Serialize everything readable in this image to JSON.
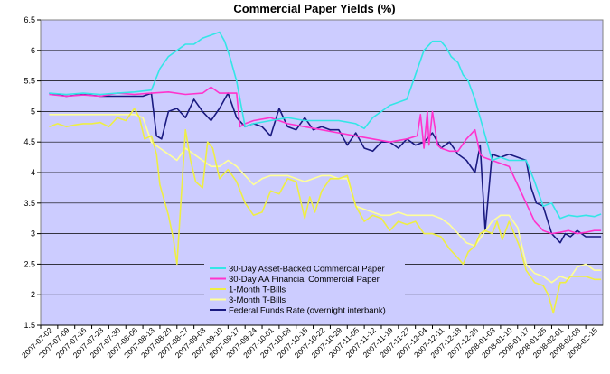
{
  "chart_data": {
    "type": "line",
    "title": "Commercial Paper Yields (%)",
    "xlabel": "",
    "ylabel": "",
    "ylim": [
      1.5,
      6.5
    ],
    "yticks": [
      "1.5",
      "2",
      "2.5",
      "3",
      "3.5",
      "4",
      "4.5",
      "5",
      "5.5",
      "6",
      "6.5"
    ],
    "x_tick_labels": [
      "2007-07-02",
      "2007-07-09",
      "2007-07-16",
      "2007-07-23",
      "2007-07-30",
      "2007-08-06",
      "2007-08-13",
      "2007-08-20",
      "2007-08-27",
      "2007-09-03",
      "2007-09-10",
      "2007-09-17",
      "2007-09-24",
      "2007-10-01",
      "2007-10-08",
      "2007-10-15",
      "2007-10-22",
      "2007-10-29",
      "2007-11-05",
      "2007-11-12",
      "2007-11-19",
      "2007-11-27",
      "2007-12-04",
      "2007-12-11",
      "2007-12-18",
      "2007-12-26",
      "2008-01-03",
      "2008-01-10",
      "2008-01-17",
      "2008-01-25",
      "2008-02-01",
      "2008-02-08",
      "2008-02-15"
    ],
    "grid": true,
    "legend_position": "bottom-center",
    "background_color": "#ccccff",
    "series": [
      {
        "name": "30-Day Asset-Backed Commercial Paper",
        "color": "#33e6e6",
        "x": [
          0,
          1,
          2,
          3,
          4,
          5,
          6,
          6.5,
          7,
          7.5,
          8,
          8.5,
          9,
          9.5,
          10,
          10.3,
          10.6,
          11,
          11.5,
          12,
          13,
          14,
          15,
          16,
          17,
          18,
          18.5,
          19,
          20,
          21,
          21.5,
          22,
          22.5,
          23,
          23.3,
          23.6,
          24,
          24.3,
          24.6,
          25,
          25.5,
          26,
          26.5,
          27,
          27.5,
          28,
          28.5,
          29,
          29.5,
          30,
          30.5,
          31,
          31.5,
          32,
          32.4
        ],
        "y": [
          5.3,
          5.28,
          5.3,
          5.28,
          5.3,
          5.32,
          5.35,
          5.7,
          5.9,
          6.0,
          6.1,
          6.1,
          6.2,
          6.25,
          6.3,
          6.15,
          5.9,
          5.5,
          4.75,
          4.8,
          4.85,
          4.9,
          4.85,
          4.85,
          4.85,
          4.8,
          4.72,
          4.9,
          5.1,
          5.2,
          5.6,
          6.0,
          6.15,
          6.15,
          6.05,
          5.9,
          5.8,
          5.6,
          5.5,
          5.2,
          4.7,
          4.2,
          4.25,
          4.2,
          4.2,
          4.2,
          3.85,
          3.45,
          3.5,
          3.25,
          3.3,
          3.28,
          3.3,
          3.28,
          3.32
        ]
      },
      {
        "name": "30-Day AA Financial Commercial Paper",
        "color": "#ff33cc",
        "x": [
          0,
          1,
          2,
          3,
          4,
          5,
          6,
          7,
          8,
          9,
          9.5,
          10,
          10.5,
          11,
          11.2,
          11.5,
          12,
          13,
          14,
          15,
          16,
          17,
          18,
          19,
          20,
          21,
          21.6,
          21.8,
          22,
          22.2,
          22.3,
          22.5,
          22.8,
          23,
          23.5,
          24,
          24.5,
          25,
          25.3,
          25.5,
          26,
          26.5,
          27,
          27.5,
          28,
          28.5,
          29,
          29.5,
          30,
          30.5,
          31,
          31.5,
          32,
          32.4
        ],
        "y": [
          5.28,
          5.25,
          5.27,
          5.25,
          5.3,
          5.28,
          5.3,
          5.32,
          5.28,
          5.3,
          5.4,
          5.3,
          5.3,
          5.3,
          4.75,
          4.8,
          4.85,
          4.9,
          4.8,
          4.75,
          4.7,
          4.65,
          4.6,
          4.55,
          4.5,
          4.55,
          4.6,
          4.95,
          4.4,
          5.0,
          4.45,
          5.0,
          4.45,
          4.4,
          4.35,
          4.35,
          4.55,
          4.7,
          4.3,
          4.25,
          4.2,
          4.15,
          4.1,
          3.8,
          3.5,
          3.2,
          3.05,
          3.0,
          3.02,
          3.05,
          3.0,
          3.02,
          3.05,
          3.05
        ]
      },
      {
        "name": "1-Month T-Bills",
        "color": "#eeee44",
        "x": [
          0,
          0.5,
          1,
          1.5,
          2,
          2.5,
          3,
          3.5,
          4,
          4.5,
          5,
          5.3,
          5.6,
          6,
          6.3,
          6.5,
          6.8,
          7,
          7.3,
          7.5,
          7.8,
          8,
          8.3,
          8.6,
          9,
          9.3,
          9.6,
          10,
          10.5,
          11,
          11.5,
          12,
          12.5,
          13,
          13.5,
          14,
          14.5,
          15,
          15.3,
          15.6,
          16,
          16.5,
          17,
          17.5,
          18,
          18.5,
          19,
          19.5,
          20,
          20.5,
          21,
          21.5,
          22,
          22.5,
          23,
          23.5,
          24,
          24.3,
          24.6,
          25,
          25.3,
          25.6,
          26,
          26.3,
          26.6,
          27,
          27.3,
          27.6,
          28,
          28.5,
          29,
          29.3,
          29.6,
          30,
          30.3,
          30.6,
          31,
          31.5,
          32,
          32.4
        ],
        "y": [
          4.75,
          4.8,
          4.75,
          4.78,
          4.8,
          4.8,
          4.82,
          4.75,
          4.9,
          4.85,
          5.05,
          4.9,
          4.55,
          4.6,
          4.3,
          3.8,
          3.5,
          3.3,
          2.9,
          2.5,
          3.8,
          4.7,
          4.2,
          3.85,
          3.75,
          4.5,
          4.4,
          3.9,
          4.05,
          3.85,
          3.5,
          3.3,
          3.35,
          3.7,
          3.65,
          3.9,
          3.85,
          3.25,
          3.6,
          3.35,
          3.7,
          3.9,
          3.9,
          3.95,
          3.45,
          3.2,
          3.3,
          3.25,
          3.05,
          3.2,
          3.15,
          3.2,
          3.0,
          3.0,
          2.95,
          2.75,
          2.6,
          2.5,
          2.7,
          2.8,
          3.0,
          3.05,
          3.0,
          3.2,
          2.9,
          3.2,
          3.0,
          2.8,
          2.4,
          2.2,
          2.15,
          2.0,
          1.7,
          2.2,
          2.2,
          2.3,
          2.3,
          2.3,
          2.25,
          2.25
        ]
      },
      {
        "name": "3-Month T-Bills",
        "color": "#ffff99",
        "x": [
          0,
          1,
          2,
          3,
          4,
          5,
          5.5,
          6,
          6.5,
          7,
          7.5,
          8,
          8.5,
          9,
          9.5,
          10,
          10.5,
          11,
          11.5,
          12,
          12.5,
          13,
          14,
          15,
          15.5,
          16,
          16.5,
          17,
          17.5,
          18,
          18.5,
          19,
          19.5,
          20,
          20.5,
          21,
          21.5,
          22,
          22.5,
          23,
          23.5,
          24,
          24.5,
          25,
          25.5,
          26,
          26.5,
          27,
          27.5,
          28,
          28.5,
          29,
          29.5,
          30,
          30.5,
          31,
          31.5,
          32,
          32.4
        ],
        "y": [
          4.95,
          4.95,
          4.95,
          4.95,
          4.95,
          4.95,
          4.9,
          4.5,
          4.4,
          4.3,
          4.2,
          4.4,
          4.3,
          4.2,
          4.1,
          4.1,
          4.2,
          4.1,
          3.95,
          3.8,
          3.9,
          3.95,
          3.95,
          3.85,
          3.9,
          3.95,
          3.95,
          3.9,
          3.9,
          3.45,
          3.4,
          3.35,
          3.3,
          3.3,
          3.35,
          3.3,
          3.3,
          3.3,
          3.3,
          3.25,
          3.15,
          3.0,
          2.85,
          2.8,
          3.0,
          3.2,
          3.3,
          3.3,
          3.1,
          2.5,
          2.35,
          2.3,
          2.2,
          2.3,
          2.25,
          2.45,
          2.5,
          2.4,
          2.4
        ]
      },
      {
        "name": "Federal Funds Rate (overnight interbank)",
        "color": "#1a1a80",
        "x": [
          0,
          1,
          2,
          3,
          4,
          5,
          5.5,
          6,
          6.3,
          6.6,
          7,
          7.5,
          8,
          8.5,
          9,
          9.5,
          10,
          10.5,
          11,
          11.5,
          12,
          12.5,
          13,
          13.5,
          14,
          14.5,
          15,
          15.5,
          16,
          16.5,
          17,
          17.5,
          18,
          18.5,
          19,
          19.5,
          20,
          20.5,
          21,
          21.5,
          22,
          22.5,
          23,
          23.5,
          24,
          24.5,
          25,
          25.3,
          25.6,
          26,
          26.5,
          27,
          27.5,
          28,
          28.3,
          28.6,
          29,
          29.5,
          30,
          30.3,
          30.6,
          31,
          31.5,
          32,
          32.4
        ],
        "y": [
          5.3,
          5.25,
          5.28,
          5.25,
          5.25,
          5.25,
          5.25,
          5.3,
          4.6,
          4.55,
          5.0,
          5.05,
          4.9,
          5.2,
          5.0,
          4.85,
          5.05,
          5.3,
          4.9,
          4.75,
          4.8,
          4.75,
          4.6,
          5.05,
          4.75,
          4.7,
          4.9,
          4.7,
          4.75,
          4.7,
          4.7,
          4.45,
          4.65,
          4.4,
          4.35,
          4.5,
          4.5,
          4.4,
          4.55,
          4.45,
          4.5,
          4.65,
          4.4,
          4.5,
          4.3,
          4.2,
          4.0,
          4.45,
          3.05,
          4.3,
          4.25,
          4.3,
          4.25,
          4.2,
          3.75,
          3.5,
          3.45,
          3.0,
          2.85,
          3.0,
          2.95,
          3.05,
          2.95,
          2.95,
          2.95
        ]
      }
    ]
  }
}
